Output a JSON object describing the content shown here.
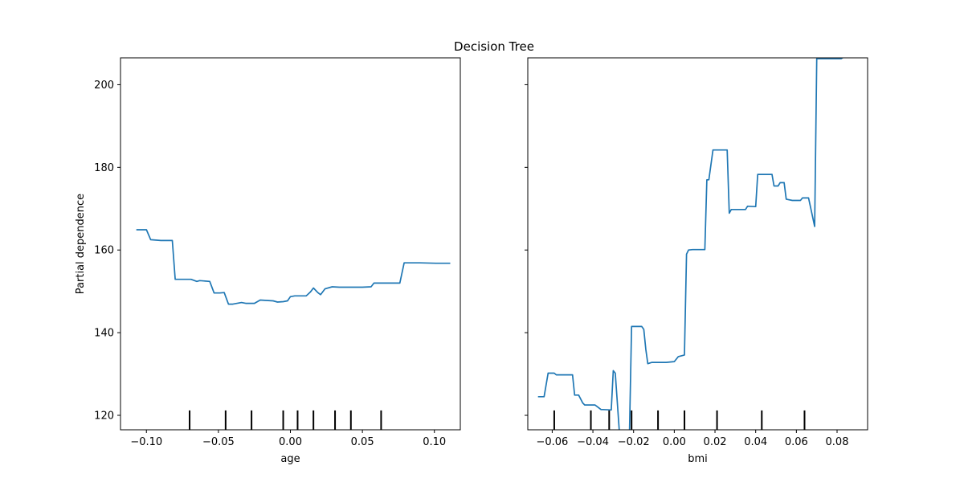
{
  "title": "Decision Tree",
  "chart_data": [
    {
      "type": "line",
      "xlabel": "age",
      "ylabel": "Partial dependence",
      "xlim": [
        -0.118,
        0.118
      ],
      "ylim": [
        116.5,
        206.5
      ],
      "xticks": [
        -0.1,
        -0.05,
        0.0,
        0.05,
        0.1
      ],
      "xtick_labels": [
        "−0.10",
        "−0.05",
        "0.00",
        "0.05",
        "0.10"
      ],
      "yticks": [
        120,
        140,
        160,
        180,
        200
      ],
      "ytick_labels": [
        "120",
        "140",
        "160",
        "180",
        "200"
      ],
      "line_color": "#1f77b4",
      "rug_x": [
        -0.07,
        -0.045,
        -0.027,
        -0.005,
        0.005,
        0.016,
        0.031,
        0.042,
        0.063
      ],
      "series": [
        {
          "x": [
            -0.107,
            -0.1,
            -0.097,
            -0.09,
            -0.082,
            -0.08,
            -0.072,
            -0.069,
            -0.065,
            -0.063,
            -0.056,
            -0.053,
            -0.049,
            -0.046,
            -0.043,
            -0.04,
            -0.034,
            -0.031,
            -0.025,
            -0.021,
            -0.012,
            -0.009,
            -0.005,
            -0.002,
            0.0,
            0.003,
            0.011,
            0.014,
            0.016,
            0.019,
            0.021,
            0.024,
            0.029,
            0.034,
            0.04,
            0.044,
            0.05,
            0.056,
            0.058,
            0.06,
            0.072,
            0.076,
            0.079,
            0.09,
            0.101,
            0.111
          ],
          "y": [
            164.9,
            164.9,
            162.5,
            162.3,
            162.3,
            152.9,
            152.9,
            152.9,
            152.4,
            152.6,
            152.4,
            149.6,
            149.6,
            149.7,
            146.9,
            146.9,
            147.3,
            147.1,
            147.1,
            147.9,
            147.7,
            147.4,
            147.5,
            147.7,
            148.7,
            148.9,
            148.9,
            149.9,
            150.8,
            149.7,
            149.2,
            150.6,
            151.1,
            151.0,
            151.0,
            151.0,
            151.0,
            151.1,
            152.0,
            152.0,
            152.0,
            152.0,
            156.9,
            156.9,
            156.8,
            156.8
          ]
        }
      ]
    },
    {
      "type": "line",
      "xlabel": "bmi",
      "ylabel": "",
      "xlim": [
        -0.072,
        0.095
      ],
      "ylim": [
        116.5,
        206.5
      ],
      "xticks": [
        -0.06,
        -0.04,
        -0.02,
        0.0,
        0.02,
        0.04,
        0.06,
        0.08
      ],
      "xtick_labels": [
        "−0.06",
        "−0.04",
        "−0.02",
        "0.00",
        "0.02",
        "0.04",
        "0.06",
        "0.08"
      ],
      "yticks": [
        120,
        140,
        160,
        180,
        200
      ],
      "ytick_labels": [
        "",
        "",
        "",
        "",
        ""
      ],
      "line_color": "#1f77b4",
      "rug_x": [
        -0.059,
        -0.041,
        -0.032,
        -0.021,
        -0.008,
        0.005,
        0.021,
        0.043,
        0.064
      ],
      "series": [
        {
          "x": [
            -0.067,
            -0.064,
            -0.062,
            -0.059,
            -0.058,
            -0.05,
            -0.049,
            -0.047,
            -0.045,
            -0.044,
            -0.043,
            -0.039,
            -0.036,
            -0.035,
            -0.031,
            -0.03,
            -0.029,
            -0.027,
            -0.026,
            -0.025,
            -0.022,
            -0.021,
            -0.02,
            -0.016,
            -0.015,
            -0.014,
            -0.013,
            -0.011,
            -0.004,
            0.0,
            0.002,
            0.005,
            0.006,
            0.007,
            0.009,
            0.015,
            0.016,
            0.017,
            0.019,
            0.02,
            0.026,
            0.027,
            0.028,
            0.035,
            0.036,
            0.04,
            0.041,
            0.048,
            0.049,
            0.051,
            0.052,
            0.054,
            0.055,
            0.058,
            0.062,
            0.063,
            0.066,
            0.069,
            0.07,
            0.082,
            0.083
          ],
          "y": [
            124.5,
            124.5,
            130.2,
            130.2,
            129.8,
            129.8,
            124.9,
            124.9,
            123.0,
            122.5,
            122.5,
            122.5,
            121.4,
            121.4,
            121.3,
            130.8,
            130.2,
            116.0,
            116.0,
            116.0,
            116.0,
            141.5,
            141.5,
            141.5,
            140.8,
            136.0,
            132.5,
            132.8,
            132.8,
            133.0,
            134.2,
            134.6,
            159.0,
            160.0,
            160.1,
            160.1,
            177.0,
            177.0,
            184.2,
            184.2,
            184.2,
            168.9,
            169.8,
            169.8,
            170.6,
            170.5,
            178.3,
            178.3,
            175.5,
            175.5,
            176.3,
            176.3,
            172.3,
            172.0,
            172.0,
            172.6,
            172.6,
            165.7,
            206.3,
            206.3,
            206.6
          ]
        }
      ]
    }
  ]
}
